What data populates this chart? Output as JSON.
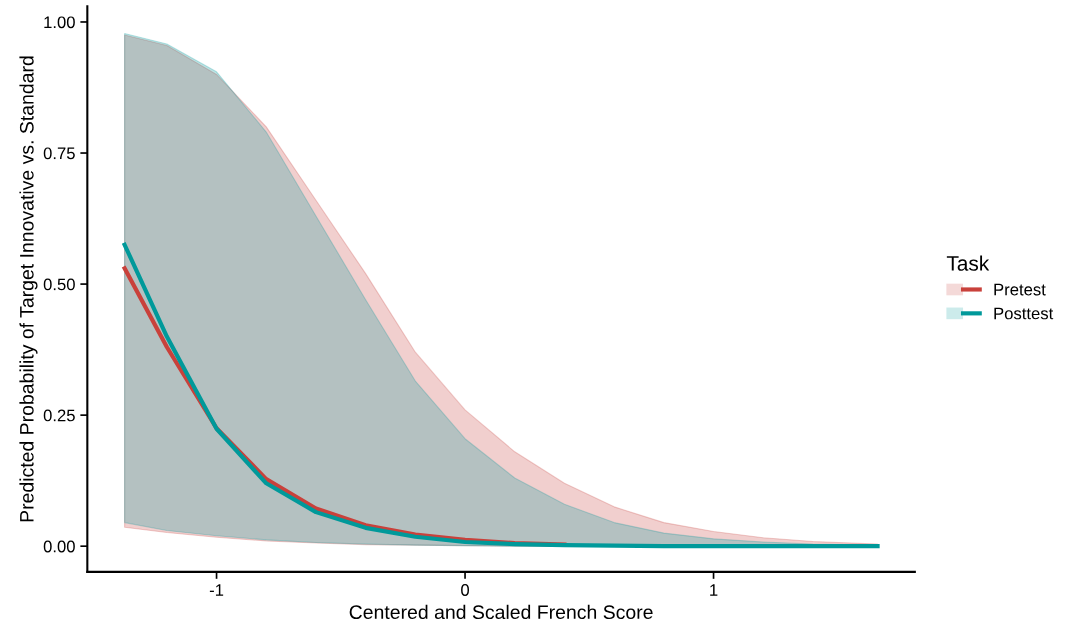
{
  "chart_data": {
    "type": "line",
    "xlabel": "Centered and Scaled French Score",
    "ylabel": "Predicted Probability of Target Innovative vs. Standard",
    "legend_title": "Task",
    "legend": "right",
    "grid": false,
    "line_style": "solid",
    "x": [
      -1.37,
      -1.2,
      -1.0,
      -0.8,
      -0.6,
      -0.4,
      -0.2,
      0,
      0.2,
      0.4,
      0.6,
      0.8,
      1.0,
      1.2,
      1.4,
      1.66
    ],
    "xlim": [
      -1.52,
      1.81
    ],
    "xticks": [
      -1,
      0,
      1
    ],
    "ylim": [
      -0.049,
      1.03
    ],
    "yticks": [
      {
        "value": 0,
        "label": "0.00"
      },
      {
        "value": 0.25,
        "label": "0.25"
      },
      {
        "value": 0.5,
        "label": "0.50"
      },
      {
        "value": 0.75,
        "label": "0.75"
      },
      {
        "value": 1,
        "label": "1.00"
      }
    ],
    "series": [
      {
        "name": "Pretest",
        "color": "#c9413b",
        "values": [
          0.53,
          0.38,
          0.225,
          0.128,
          0.072,
          0.04,
          0.022,
          0.012,
          0.006,
          0.003,
          null,
          null,
          null,
          null,
          null,
          null
        ],
        "lower": [
          0.036,
          0.026,
          0.017,
          0.01,
          0.006,
          0.003,
          0.002,
          0.001,
          0,
          0,
          0,
          0,
          0,
          0,
          0,
          0
        ],
        "upper": [
          0.975,
          0.955,
          0.9,
          0.8,
          0.66,
          0.52,
          0.37,
          0.26,
          0.18,
          0.12,
          0.075,
          0.045,
          0.028,
          0.016,
          0.009,
          0.004
        ]
      },
      {
        "name": "Posttest",
        "color": "#00999a",
        "values": [
          0.575,
          0.4,
          0.224,
          0.12,
          0.065,
          0.035,
          0.018,
          0.008,
          0.004,
          0.002,
          0.001,
          0,
          0,
          0,
          0,
          0
        ],
        "lower": [
          0.045,
          0.03,
          0.02,
          0.012,
          0.007,
          0.004,
          0.002,
          0.001,
          0,
          0,
          0,
          0,
          0,
          0,
          0,
          0
        ],
        "upper": [
          0.978,
          0.958,
          0.905,
          0.79,
          0.63,
          0.47,
          0.315,
          0.205,
          0.13,
          0.08,
          0.045,
          0.025,
          0.014,
          0.008,
          0.004,
          0.002
        ]
      }
    ]
  }
}
